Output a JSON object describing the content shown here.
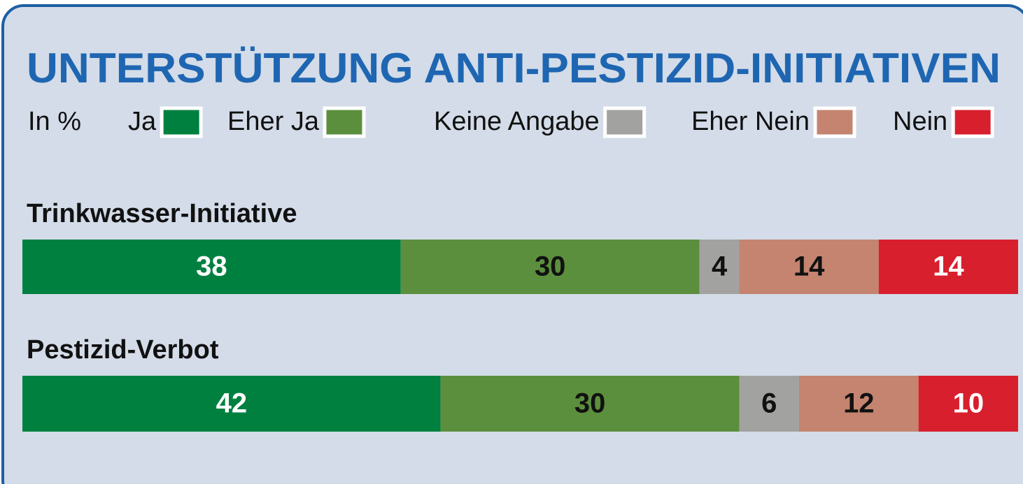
{
  "chart_data": {
    "type": "stacked-bar-horizontal",
    "title": "UNTERSTÜTZUNG ANTI-PESTIZID-INITIATIVEN",
    "subtitle": "In %",
    "categories": [
      "Trinkwasser-Initiative",
      "Pestizid-Verbot"
    ],
    "xlim": [
      0,
      100
    ],
    "series": [
      {
        "name": "Ja",
        "color": "#00803f",
        "values": [
          38,
          42
        ]
      },
      {
        "name": "Eher Ja",
        "color": "#5b8f3d",
        "values": [
          30,
          30
        ]
      },
      {
        "name": "Keine Angabe",
        "color": "#a2a2a0",
        "values": [
          4,
          6
        ]
      },
      {
        "name": "Eher Nein",
        "color": "#c4846f",
        "values": [
          14,
          12
        ]
      },
      {
        "name": "Nein",
        "color": "#d81f2d",
        "values": [
          14,
          10
        ]
      }
    ]
  }
}
